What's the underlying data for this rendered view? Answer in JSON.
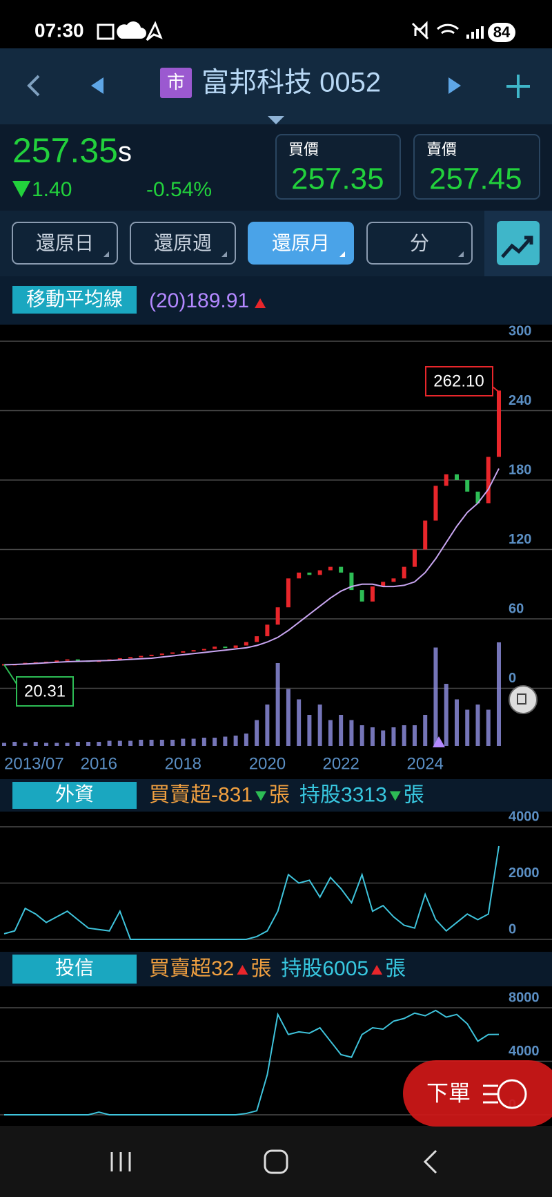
{
  "status_bar": {
    "time": "07:30",
    "battery": "84"
  },
  "header": {
    "market_badge": "市",
    "title": "富邦科技 0052"
  },
  "quote": {
    "price": "257.35",
    "price_suffix": "s",
    "change": "1.40",
    "change_percent": "-0.54%",
    "bid_label": "買價",
    "bid": "257.35",
    "ask_label": "賣價",
    "ask": "257.45"
  },
  "tabs": [
    "還原日",
    "還原週",
    "還原月",
    "分"
  ],
  "active_tab": 2,
  "indicator": {
    "label": "移動平均線",
    "value": "(20)189.91"
  },
  "panels": [
    {
      "tag": "外資",
      "net": "買賣超-831",
      "net_unit": "張",
      "holding": "持股3313",
      "holding_unit": "張"
    },
    {
      "tag": "投信",
      "net": "買賣超32",
      "net_unit": "張",
      "holding": "持股6005",
      "holding_unit": "張"
    }
  ],
  "order_button": "下單",
  "chart_data": [
    {
      "type": "candlestick",
      "up_color": "#e8262b",
      "down_color": "#2dbd55",
      "ma_color": "#c9a6f2",
      "values": [
        20.3,
        21,
        22,
        22.5,
        23,
        24,
        25,
        24,
        23,
        24,
        25,
        26,
        27,
        28,
        29,
        30,
        31,
        32,
        33,
        34,
        36,
        35,
        37,
        40,
        45,
        55,
        70,
        95,
        100,
        98,
        102,
        105,
        100,
        85,
        75,
        88,
        92,
        95,
        105,
        120,
        145,
        175,
        185,
        180,
        170,
        160,
        200,
        257.35
      ],
      "ma_values": [
        20.3,
        20.6,
        21,
        21.5,
        22,
        22.5,
        23,
        23.3,
        23.5,
        23.8,
        24,
        24.5,
        25,
        25.5,
        26,
        27,
        28,
        29,
        30,
        31,
        32,
        33,
        34,
        35,
        37,
        40,
        44,
        50,
        57,
        64,
        71,
        78,
        84,
        88,
        90,
        90,
        88,
        88,
        89,
        92,
        100,
        112,
        126,
        140,
        152,
        160,
        172,
        189.91
      ],
      "volume": [
        3,
        4,
        3,
        4,
        3,
        3,
        3,
        4,
        4,
        4,
        5,
        5,
        5,
        6,
        6,
        6,
        6,
        7,
        7,
        8,
        8,
        9,
        10,
        12,
        25,
        40,
        80,
        55,
        45,
        30,
        40,
        25,
        30,
        25,
        20,
        18,
        15,
        18,
        20,
        20,
        30,
        95,
        60,
        45,
        35,
        40,
        35,
        100
      ],
      "volume_color": "#8a8ad8",
      "volume_lim": [
        0,
        100
      ],
      "ylim": [
        0,
        300
      ],
      "yticks": [
        0,
        60,
        120,
        180,
        240,
        300
      ],
      "xticks": [
        {
          "value": 0,
          "label": "2013/07"
        },
        {
          "value": 9,
          "label": "2016"
        },
        {
          "value": 17,
          "label": "2018"
        },
        {
          "value": 25,
          "label": "2020"
        },
        {
          "value": 32,
          "label": "2022"
        },
        {
          "value": 40,
          "label": "2024"
        }
      ],
      "max_label": "262.10",
      "min_label": "20.31",
      "grid": true
    },
    {
      "type": "line",
      "color": "#3fc4dc",
      "values": [
        200,
        300,
        1100,
        900,
        600,
        800,
        1000,
        700,
        400,
        350,
        300,
        1000,
        0,
        0,
        0,
        0,
        0,
        0,
        0,
        0,
        0,
        0,
        0,
        0,
        100,
        300,
        1000,
        2300,
        2000,
        2100,
        1500,
        2200,
        1800,
        1300,
        2300,
        1000,
        1200,
        800,
        500,
        400,
        1600,
        700,
        300,
        600,
        900,
        700,
        900,
        3313
      ],
      "ylim": [
        0,
        4000
      ],
      "yticks": [
        0,
        2000,
        4000
      ],
      "grid": true
    },
    {
      "type": "line",
      "color": "#3fc4dc",
      "values": [
        0,
        0,
        0,
        0,
        0,
        0,
        0,
        0,
        0,
        200,
        0,
        0,
        0,
        0,
        0,
        0,
        0,
        0,
        0,
        0,
        0,
        0,
        0,
        100,
        300,
        3000,
        7500,
        6000,
        6200,
        6100,
        6500,
        5500,
        4500,
        4300,
        6000,
        6500,
        6400,
        7000,
        7200,
        7600,
        7400,
        7800,
        7300,
        7500,
        6800,
        5500,
        6000,
        6005
      ],
      "ylim": [
        0,
        8000
      ],
      "yticks": [
        0,
        4000,
        8000
      ],
      "grid": true
    }
  ]
}
